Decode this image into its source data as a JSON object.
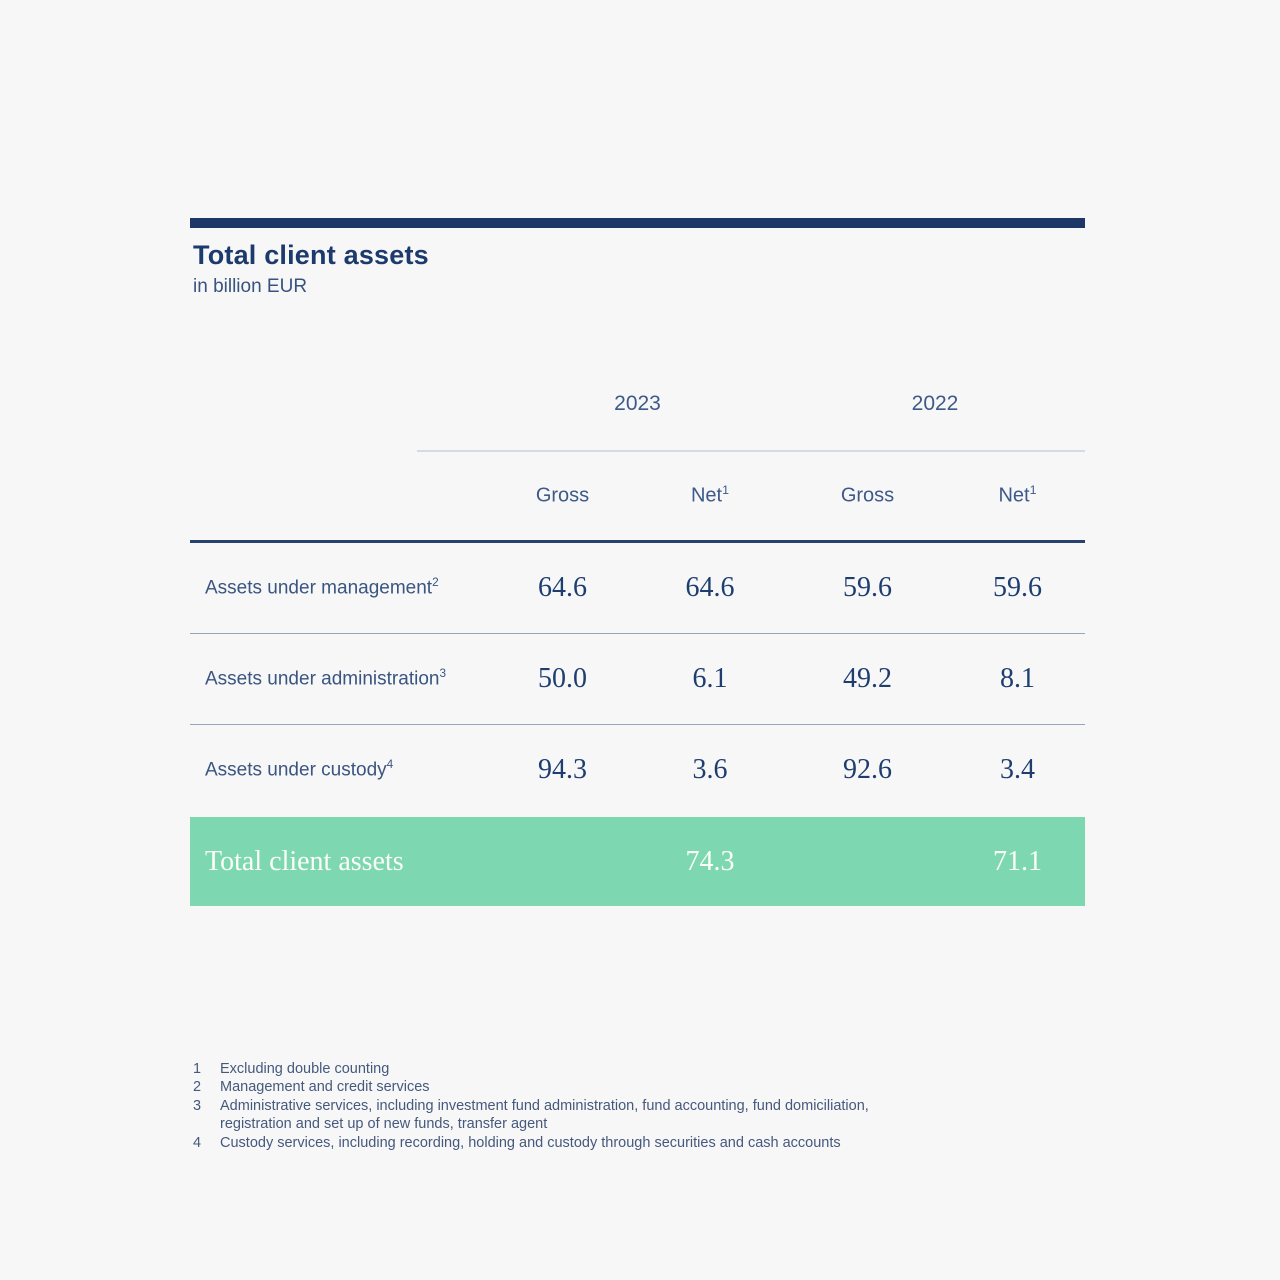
{
  "header": {
    "title": "Total client assets",
    "subtitle": "in billion EUR"
  },
  "chart_data": {
    "type": "table",
    "title": "Total client assets",
    "unit": "in billion EUR",
    "year_groups": [
      "2023",
      "2022"
    ],
    "columns": [
      "Gross 2023",
      "Net 2023",
      "Gross 2022",
      "Net 2022"
    ],
    "rows": [
      {
        "label": "Assets under management",
        "footnote_ref": "2",
        "values": [
          64.6,
          64.6,
          59.6,
          59.6
        ]
      },
      {
        "label": "Assets under administration",
        "footnote_ref": "3",
        "values": [
          50.0,
          6.1,
          49.2,
          8.1
        ]
      },
      {
        "label": "Assets under custody",
        "footnote_ref": "4",
        "values": [
          94.3,
          3.6,
          92.6,
          3.4
        ]
      }
    ],
    "total": {
      "label": "Total client assets",
      "net_2023": 74.3,
      "net_2022": 71.1
    }
  },
  "table": {
    "years": [
      "2023",
      "2022"
    ],
    "colheads": [
      {
        "label": "Gross",
        "sup": ""
      },
      {
        "label": "Net",
        "sup": "1"
      },
      {
        "label": "Gross",
        "sup": ""
      },
      {
        "label": "Net",
        "sup": "1"
      }
    ],
    "rows": [
      {
        "label": "Assets under management",
        "sup": "2",
        "values": [
          "64.6",
          "64.6",
          "59.6",
          "59.6"
        ]
      },
      {
        "label": "Assets under administration",
        "sup": "3",
        "values": [
          "50.0",
          "6.1",
          "49.2",
          "8.1"
        ]
      },
      {
        "label": "Assets under custody",
        "sup": "4",
        "values": [
          "94.3",
          "3.6",
          "92.6",
          "3.4"
        ]
      }
    ],
    "total": {
      "label": "Total client assets",
      "net_2023": "74.3",
      "net_2022": "71.1"
    }
  },
  "colors": {
    "accent_navy": "#1d3766",
    "total_green": "#7dd8b1",
    "page_background": "#f7f7f8"
  },
  "footnotes": [
    {
      "num": "1",
      "text": "Excluding double counting"
    },
    {
      "num": "2",
      "text": "Management and credit services"
    },
    {
      "num": "3",
      "text": "Administrative services, including investment fund administration, fund accounting, fund domiciliation, registration and set up of new funds, transfer agent"
    },
    {
      "num": "4",
      "text": "Custody services, including recording, holding and custody through securities and cash accounts"
    }
  ]
}
